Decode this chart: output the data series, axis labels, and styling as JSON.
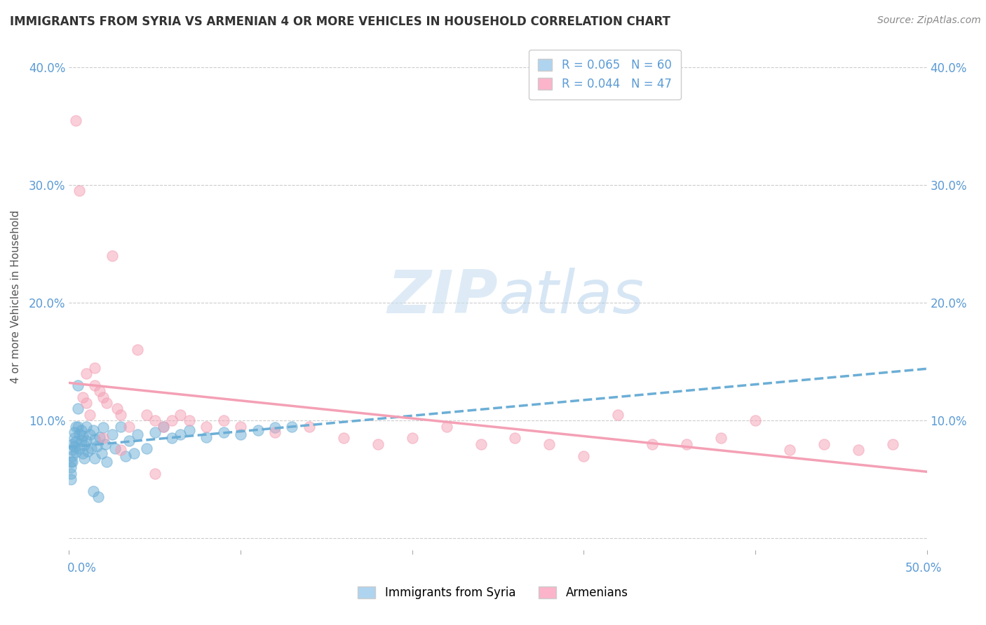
{
  "title": "IMMIGRANTS FROM SYRIA VS ARMENIAN 4 OR MORE VEHICLES IN HOUSEHOLD CORRELATION CHART",
  "source": "Source: ZipAtlas.com",
  "ylabel": "4 or more Vehicles in Household",
  "series1_name": "Immigrants from Syria",
  "series1_R": 0.065,
  "series1_N": 60,
  "series1_color": "#6baed6",
  "series2_name": "Armenians",
  "series2_R": 0.044,
  "series2_N": 47,
  "series2_color": "#f4a0b5",
  "xlim": [
    0.0,
    0.5
  ],
  "ylim": [
    -0.01,
    0.42
  ],
  "yticks": [
    0.0,
    0.1,
    0.2,
    0.3,
    0.4
  ],
  "background_color": "#ffffff",
  "grid_color": "#cccccc",
  "title_color": "#333333",
  "axis_label_color": "#5b9bd5",
  "watermark_color": "#d6eaf8",
  "legend_box_color1": "#aed4f0",
  "legend_box_color2": "#fbb4c9",
  "syria_x": [
    0.001,
    0.001,
    0.001,
    0.001,
    0.002,
    0.002,
    0.002,
    0.002,
    0.003,
    0.003,
    0.003,
    0.004,
    0.004,
    0.004,
    0.005,
    0.005,
    0.005,
    0.006,
    0.006,
    0.007,
    0.007,
    0.008,
    0.008,
    0.009,
    0.009,
    0.01,
    0.01,
    0.011,
    0.012,
    0.013,
    0.014,
    0.015,
    0.015,
    0.016,
    0.018,
    0.019,
    0.02,
    0.021,
    0.022,
    0.025,
    0.027,
    0.03,
    0.033,
    0.035,
    0.038,
    0.04,
    0.045,
    0.05,
    0.055,
    0.06,
    0.065,
    0.07,
    0.08,
    0.09,
    0.1,
    0.11,
    0.12,
    0.13,
    0.014,
    0.017
  ],
  "syria_y": [
    0.055,
    0.06,
    0.065,
    0.05,
    0.08,
    0.075,
    0.07,
    0.065,
    0.09,
    0.085,
    0.078,
    0.095,
    0.082,
    0.073,
    0.13,
    0.11,
    0.095,
    0.088,
    0.076,
    0.092,
    0.083,
    0.072,
    0.087,
    0.068,
    0.079,
    0.095,
    0.083,
    0.074,
    0.088,
    0.076,
    0.092,
    0.084,
    0.068,
    0.078,
    0.086,
    0.072,
    0.094,
    0.08,
    0.065,
    0.088,
    0.076,
    0.095,
    0.07,
    0.083,
    0.072,
    0.088,
    0.076,
    0.09,
    0.095,
    0.085,
    0.088,
    0.092,
    0.086,
    0.09,
    0.088,
    0.092,
    0.094,
    0.095,
    0.04,
    0.035
  ],
  "armenian_x": [
    0.004,
    0.006,
    0.008,
    0.01,
    0.012,
    0.015,
    0.018,
    0.02,
    0.022,
    0.025,
    0.028,
    0.03,
    0.035,
    0.04,
    0.045,
    0.05,
    0.055,
    0.06,
    0.065,
    0.07,
    0.08,
    0.09,
    0.1,
    0.12,
    0.14,
    0.16,
    0.18,
    0.2,
    0.22,
    0.24,
    0.26,
    0.28,
    0.3,
    0.32,
    0.34,
    0.36,
    0.38,
    0.4,
    0.42,
    0.44,
    0.46,
    0.48,
    0.01,
    0.015,
    0.02,
    0.03,
    0.05
  ],
  "armenian_y": [
    0.355,
    0.295,
    0.12,
    0.115,
    0.105,
    0.13,
    0.125,
    0.12,
    0.115,
    0.24,
    0.11,
    0.105,
    0.095,
    0.16,
    0.105,
    0.1,
    0.095,
    0.1,
    0.105,
    0.1,
    0.095,
    0.1,
    0.095,
    0.09,
    0.095,
    0.085,
    0.08,
    0.085,
    0.095,
    0.08,
    0.085,
    0.08,
    0.07,
    0.105,
    0.08,
    0.08,
    0.085,
    0.1,
    0.075,
    0.08,
    0.075,
    0.08,
    0.14,
    0.145,
    0.085,
    0.075,
    0.055
  ]
}
